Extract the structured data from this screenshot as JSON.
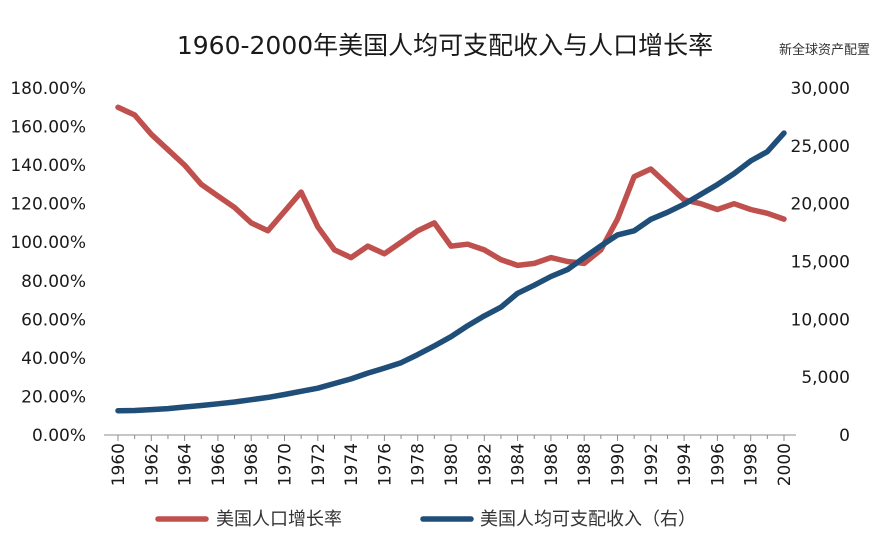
{
  "title": "1960-2000年美国人均可支配收入与人口增长率",
  "source": "新全球资产配置",
  "chart_data": {
    "type": "line",
    "x": [
      1960,
      1961,
      1962,
      1963,
      1964,
      1965,
      1966,
      1967,
      1968,
      1969,
      1970,
      1971,
      1972,
      1973,
      1974,
      1975,
      1976,
      1977,
      1978,
      1979,
      1980,
      1981,
      1982,
      1983,
      1984,
      1985,
      1986,
      1987,
      1988,
      1989,
      1990,
      1991,
      1992,
      1993,
      1994,
      1995,
      1996,
      1997,
      1998,
      1999,
      2000
    ],
    "x_tick_labels": [
      "1960",
      "1962",
      "1964",
      "1966",
      "1968",
      "1970",
      "1972",
      "1974",
      "1976",
      "1978",
      "1980",
      "1982",
      "1984",
      "1986",
      "1988",
      "1990",
      "1992",
      "1994",
      "1996",
      "1998",
      "2000"
    ],
    "left_axis": {
      "ylim": [
        0,
        1.8
      ],
      "tick_labels": [
        "0.00%",
        "20.00%",
        "40.00%",
        "60.00%",
        "80.00%",
        "100.00%",
        "120.00%",
        "140.00%",
        "160.00%",
        "180.00%"
      ]
    },
    "right_axis": {
      "ylim": [
        0,
        30000
      ],
      "tick_labels": [
        "0",
        "5,000",
        "10,000",
        "15,000",
        "20,000",
        "25,000",
        "30,000"
      ]
    },
    "series": [
      {
        "name": "美国人口增长率",
        "axis": "left",
        "color": "#C0504D",
        "values": [
          1.7,
          1.66,
          1.56,
          1.48,
          1.4,
          1.3,
          1.24,
          1.18,
          1.1,
          1.06,
          1.16,
          1.26,
          1.08,
          0.96,
          0.92,
          0.98,
          0.94,
          1.0,
          1.06,
          1.1,
          0.98,
          0.99,
          0.96,
          0.91,
          0.88,
          0.89,
          0.92,
          0.9,
          0.89,
          0.96,
          1.12,
          1.34,
          1.38,
          1.3,
          1.22,
          1.2,
          1.17,
          1.2,
          1.17,
          1.15,
          1.12
        ]
      },
      {
        "name": "美国人均可支配收入（右）",
        "axis": "right",
        "color": "#1F4E79",
        "values": [
          2100,
          2120,
          2200,
          2280,
          2420,
          2550,
          2700,
          2850,
          3050,
          3250,
          3500,
          3780,
          4050,
          4450,
          4850,
          5350,
          5780,
          6250,
          6950,
          7700,
          8500,
          9450,
          10300,
          11050,
          12250,
          12950,
          13700,
          14300,
          15350,
          16350,
          17300,
          17650,
          18650,
          19250,
          19950,
          20800,
          21650,
          22600,
          23700,
          24500,
          26100
        ]
      }
    ],
    "legend": "bottom",
    "grid": false
  }
}
